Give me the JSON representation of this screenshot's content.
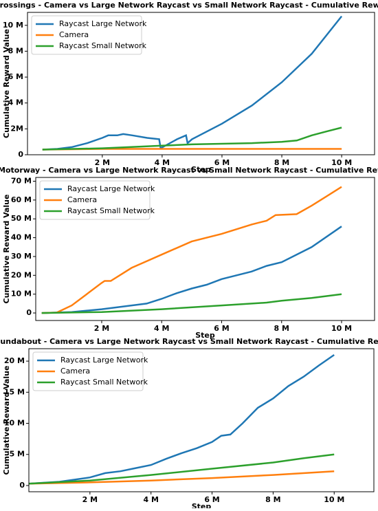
{
  "chart_data": [
    {
      "type": "line",
      "title": "Crossings - Camera vs Large Network Raycast vs Small Network Raycast - Cumulative Reward",
      "xlabel": "Step",
      "ylabel": "Cumulative Reward Value",
      "xlim": [
        -500000,
        11100000
      ],
      "ylim": [
        0,
        11000000
      ],
      "xticks": [
        {
          "value": 2000000,
          "label": "2 M"
        },
        {
          "value": 4000000,
          "label": "4 M"
        },
        {
          "value": 6000000,
          "label": "6 M"
        },
        {
          "value": 8000000,
          "label": "8 M"
        },
        {
          "value": 10000000,
          "label": "10 M"
        }
      ],
      "yticks": [
        0,
        {
          "value": 2000000,
          "label": "2M"
        },
        {
          "value": 4000000,
          "label": "4 M"
        },
        {
          "value": 6000000,
          "label": "6 M"
        },
        {
          "value": 8000000,
          "label": "8 M"
        },
        {
          "value": 10000000,
          "label": "10 M"
        }
      ],
      "legend": "upper left",
      "series": [
        {
          "name": "Raycast Large Network",
          "color": "#1f77b4",
          "x": [
            0,
            500000,
            1000000,
            1500000,
            2000000,
            2200000,
            2500000,
            2700000,
            3000000,
            3500000,
            3900000,
            3950000,
            4500000,
            4800000,
            4850000,
            5000000,
            6000000,
            7000000,
            8000000,
            9000000,
            10000000
          ],
          "values": [
            400000,
            450000,
            600000,
            900000,
            1300000,
            1500000,
            1500000,
            1600000,
            1500000,
            1300000,
            1200000,
            500000,
            1200000,
            1500000,
            900000,
            1200000,
            2400000,
            3800000,
            5600000,
            7800000,
            10700000
          ]
        },
        {
          "name": "Camera",
          "color": "#ff7f0e",
          "x": [
            0,
            2000000,
            5000000,
            10000000
          ],
          "values": [
            400000,
            450000,
            450000,
            450000
          ]
        },
        {
          "name": "Raycast Small Network",
          "color": "#2ca02c",
          "x": [
            0,
            2000000,
            4000000,
            5000000,
            6000000,
            7000000,
            8000000,
            8500000,
            9000000,
            9500000,
            10000000
          ],
          "values": [
            400000,
            500000,
            700000,
            800000,
            850000,
            900000,
            1000000,
            1100000,
            1500000,
            1800000,
            2100000
          ]
        }
      ]
    },
    {
      "type": "line",
      "title": "Motorway - Camera vs Large Network Raycast vs Small Network Raycast - Cumulative Reward",
      "xlabel": "Step",
      "ylabel": "Cumulative Reward Value",
      "xlim": [
        -200000,
        11100000
      ],
      "ylim": [
        -4000000,
        72000000
      ],
      "xticks": [
        {
          "value": 2000000,
          "label": "2 M"
        },
        {
          "value": 4000000,
          "label": "4 M"
        },
        {
          "value": 6000000,
          "label": "6 M"
        },
        {
          "value": 8000000,
          "label": "8 M"
        },
        {
          "value": 10000000,
          "label": "10 M"
        }
      ],
      "yticks": [
        0,
        {
          "value": 10000000,
          "label": "10 M"
        },
        {
          "value": 20000000,
          "label": "20 M"
        },
        {
          "value": 30000000,
          "label": "30 M"
        },
        {
          "value": 40000000,
          "label": "40 M"
        },
        {
          "value": 50000000,
          "label": "50 M"
        },
        {
          "value": 60000000,
          "label": "60 M"
        },
        {
          "value": 70000000,
          "label": "70 M"
        }
      ],
      "legend": "upper left",
      "series": [
        {
          "name": "Raycast Large Network",
          "color": "#1f77b4",
          "x": [
            0,
            1000000,
            2000000,
            3000000,
            3500000,
            4000000,
            4500000,
            5000000,
            5500000,
            6000000,
            6500000,
            7000000,
            7500000,
            8000000,
            9000000,
            10000000
          ],
          "values": [
            0,
            500000,
            2000000,
            4000000,
            5000000,
            7500000,
            10500000,
            13000000,
            15000000,
            18000000,
            20000000,
            22000000,
            25000000,
            27000000,
            35000000,
            46000000
          ]
        },
        {
          "name": "Camera",
          "color": "#ff7f0e",
          "x": [
            0,
            500000,
            1000000,
            1500000,
            2000000,
            2100000,
            2300000,
            3000000,
            4000000,
            5000000,
            6000000,
            7000000,
            7500000,
            7800000,
            8500000,
            9000000,
            9500000,
            10000000
          ],
          "values": [
            0,
            200000,
            4000000,
            10000000,
            16000000,
            17000000,
            17000000,
            24000000,
            31000000,
            38000000,
            42000000,
            47000000,
            49000000,
            52000000,
            52500000,
            57000000,
            62000000,
            67000000
          ]
        },
        {
          "name": "Raycast Small Network",
          "color": "#2ca02c",
          "x": [
            0,
            2000000,
            4000000,
            6000000,
            7000000,
            7500000,
            8000000,
            9000000,
            10000000
          ],
          "values": [
            0,
            500000,
            2000000,
            4000000,
            5000000,
            5500000,
            6500000,
            8000000,
            10000000
          ]
        }
      ]
    },
    {
      "type": "line",
      "title": "Roundabout - Camera vs Large Network Raycast vs Small Network Raycast - Cumulative Reward",
      "xlabel": "Step",
      "ylabel": "Cumulative Reward Value",
      "xlim": [
        0,
        11300000
      ],
      "ylim": [
        -1000000,
        22000000
      ],
      "xticks": [
        {
          "value": 2000000,
          "label": "2 M"
        },
        {
          "value": 4000000,
          "label": "4 M"
        },
        {
          "value": 6000000,
          "label": "6 M"
        },
        {
          "value": 8000000,
          "label": "8 M"
        },
        {
          "value": 10000000,
          "label": "10 M"
        }
      ],
      "yticks": [
        0,
        {
          "value": 5000000,
          "label": "5 M"
        },
        {
          "value": 10000000,
          "label": "10 M"
        },
        {
          "value": 15000000,
          "label": "15 M"
        },
        {
          "value": 20000000,
          "label": "20 M"
        }
      ],
      "legend": "upper left",
      "series": [
        {
          "name": "Raycast Large Network",
          "color": "#1f77b4",
          "x": [
            0,
            1000000,
            2000000,
            2500000,
            3000000,
            3500000,
            4000000,
            4500000,
            5000000,
            5500000,
            6000000,
            6300000,
            6600000,
            7000000,
            7500000,
            8000000,
            8500000,
            9000000,
            9500000,
            10000000
          ],
          "values": [
            300000,
            600000,
            1300000,
            2000000,
            2300000,
            2800000,
            3300000,
            4300000,
            5200000,
            6000000,
            7000000,
            8000000,
            8200000,
            10000000,
            12500000,
            14000000,
            16000000,
            17500000,
            19300000,
            21000000
          ]
        },
        {
          "name": "Camera",
          "color": "#ff7f0e",
          "x": [
            0,
            2000000,
            4000000,
            6000000,
            8000000,
            10000000
          ],
          "values": [
            300000,
            500000,
            800000,
            1200000,
            1700000,
            2300000
          ]
        },
        {
          "name": "Raycast Small Network",
          "color": "#2ca02c",
          "x": [
            0,
            2000000,
            4000000,
            6000000,
            8000000,
            9000000,
            10000000
          ],
          "values": [
            300000,
            800000,
            1700000,
            2700000,
            3700000,
            4400000,
            5000000
          ]
        }
      ]
    }
  ]
}
